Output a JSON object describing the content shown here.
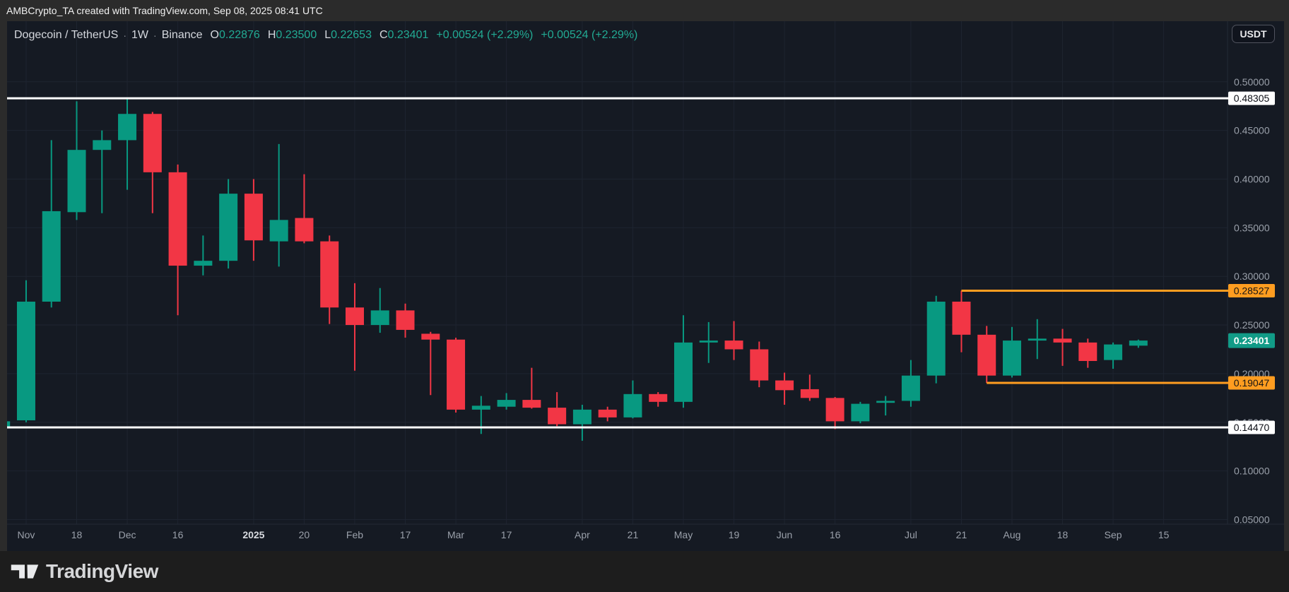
{
  "top_bar": {
    "attribution": "AMBCrypto_TA created with TradingView.com, Sep 08, 2025 08:41 UTC"
  },
  "header": {
    "symbol": "Dogecoin / TetherUS",
    "separator": "·",
    "interval": "1W",
    "exchange": "Binance",
    "ohlc": [
      {
        "label": "O",
        "value": "0.22876"
      },
      {
        "label": "H",
        "value": "0.23500"
      },
      {
        "label": "L",
        "value": "0.22653"
      },
      {
        "label": "C",
        "value": "0.23401"
      }
    ],
    "change_1": "+0.00524 (+2.29%)",
    "change_2": "+0.00524 (+2.29%)"
  },
  "currency_button": {
    "label": "USDT"
  },
  "footer": {
    "brand": "TradingView"
  },
  "colors": {
    "page_background": "#2b2b2b",
    "chart_background": "#151a23",
    "footer_background": "#1d1d1d",
    "grid": "#1e2430",
    "axis_border": "#242a36",
    "axis_text": "#9aa0aa",
    "axis_text_bold": "#d8dbe0",
    "up": "#089981",
    "down": "#f23645",
    "legend_value": "#22ab94",
    "orange": "#ff9d20",
    "white_line": "#ffffff",
    "current_label_bg": "#119b87"
  },
  "chart_data": {
    "type": "candlestick",
    "title": "Dogecoin / TetherUS · 1W · Binance",
    "timeframe": "1W",
    "y_axis": {
      "min": 0.05,
      "max": 0.5,
      "step": 0.05,
      "ticks": [
        {
          "value": 0.5,
          "label": "0.50000"
        },
        {
          "value": 0.45,
          "label": "0.45000"
        },
        {
          "value": 0.4,
          "label": "0.40000"
        },
        {
          "value": 0.35,
          "label": "0.35000"
        },
        {
          "value": 0.3,
          "label": "0.30000"
        },
        {
          "value": 0.25,
          "label": "0.25000"
        },
        {
          "value": 0.2,
          "label": "0.20000"
        },
        {
          "value": 0.15,
          "label": "0.15000"
        },
        {
          "value": 0.1,
          "label": "0.10000"
        },
        {
          "value": 0.05,
          "label": "0.05000"
        }
      ]
    },
    "x_axis": {
      "ticks": [
        {
          "label": "Nov",
          "week": 1,
          "bold": false
        },
        {
          "label": "18",
          "week": 3,
          "bold": false
        },
        {
          "label": "Dec",
          "week": 5,
          "bold": false
        },
        {
          "label": "16",
          "week": 7,
          "bold": false
        },
        {
          "label": "2025",
          "week": 10,
          "bold": true
        },
        {
          "label": "20",
          "week": 12,
          "bold": false
        },
        {
          "label": "Feb",
          "week": 14,
          "bold": false
        },
        {
          "label": "17",
          "week": 16,
          "bold": false
        },
        {
          "label": "Mar",
          "week": 18,
          "bold": false
        },
        {
          "label": "17",
          "week": 20,
          "bold": false
        },
        {
          "label": "Apr",
          "week": 23,
          "bold": false
        },
        {
          "label": "21",
          "week": 25,
          "bold": false
        },
        {
          "label": "May",
          "week": 27,
          "bold": false
        },
        {
          "label": "19",
          "week": 29,
          "bold": false
        },
        {
          "label": "Jun",
          "week": 31,
          "bold": false
        },
        {
          "label": "16",
          "week": 33,
          "bold": false
        },
        {
          "label": "Jul",
          "week": 36,
          "bold": false
        },
        {
          "label": "21",
          "week": 38,
          "bold": false
        },
        {
          "label": "Aug",
          "week": 40,
          "bold": false
        },
        {
          "label": "18",
          "week": 42,
          "bold": false
        },
        {
          "label": "Sep",
          "week": 44,
          "bold": false
        },
        {
          "label": "15",
          "week": 46,
          "bold": false
        }
      ]
    },
    "candles": [
      {
        "date": "2024-10-28",
        "o": 0.144,
        "h": 0.158,
        "l": 0.138,
        "c": 0.151
      },
      {
        "date": "2024-11-04",
        "o": 0.152,
        "h": 0.296,
        "l": 0.15,
        "c": 0.274
      },
      {
        "date": "2024-11-11",
        "o": 0.274,
        "h": 0.44,
        "l": 0.268,
        "c": 0.367
      },
      {
        "date": "2024-11-18",
        "o": 0.366,
        "h": 0.48,
        "l": 0.358,
        "c": 0.43
      },
      {
        "date": "2024-11-25",
        "o": 0.43,
        "h": 0.45,
        "l": 0.365,
        "c": 0.44
      },
      {
        "date": "2024-12-02",
        "o": 0.44,
        "h": 0.48305,
        "l": 0.389,
        "c": 0.467
      },
      {
        "date": "2024-12-09",
        "o": 0.467,
        "h": 0.469,
        "l": 0.365,
        "c": 0.407
      },
      {
        "date": "2024-12-16",
        "o": 0.407,
        "h": 0.415,
        "l": 0.26,
        "c": 0.311
      },
      {
        "date": "2024-12-23",
        "o": 0.311,
        "h": 0.342,
        "l": 0.301,
        "c": 0.316
      },
      {
        "date": "2024-12-30",
        "o": 0.316,
        "h": 0.4,
        "l": 0.308,
        "c": 0.385
      },
      {
        "date": "2025-01-06",
        "o": 0.385,
        "h": 0.4,
        "l": 0.316,
        "c": 0.337
      },
      {
        "date": "2025-01-13",
        "o": 0.336,
        "h": 0.436,
        "l": 0.31,
        "c": 0.358
      },
      {
        "date": "2025-01-20",
        "o": 0.36,
        "h": 0.405,
        "l": 0.334,
        "c": 0.336
      },
      {
        "date": "2025-01-27",
        "o": 0.336,
        "h": 0.342,
        "l": 0.251,
        "c": 0.268
      },
      {
        "date": "2025-02-03",
        "o": 0.268,
        "h": 0.293,
        "l": 0.203,
        "c": 0.25
      },
      {
        "date": "2025-02-10",
        "o": 0.25,
        "h": 0.288,
        "l": 0.242,
        "c": 0.265
      },
      {
        "date": "2025-02-17",
        "o": 0.265,
        "h": 0.272,
        "l": 0.237,
        "c": 0.245
      },
      {
        "date": "2025-02-24",
        "o": 0.241,
        "h": 0.243,
        "l": 0.178,
        "c": 0.235
      },
      {
        "date": "2025-03-03",
        "o": 0.235,
        "h": 0.237,
        "l": 0.16,
        "c": 0.163
      },
      {
        "date": "2025-03-10",
        "o": 0.163,
        "h": 0.177,
        "l": 0.138,
        "c": 0.167
      },
      {
        "date": "2025-03-17",
        "o": 0.166,
        "h": 0.18,
        "l": 0.163,
        "c": 0.173
      },
      {
        "date": "2025-03-24",
        "o": 0.173,
        "h": 0.206,
        "l": 0.164,
        "c": 0.165
      },
      {
        "date": "2025-03-31",
        "o": 0.165,
        "h": 0.181,
        "l": 0.146,
        "c": 0.148
      },
      {
        "date": "2025-04-07",
        "o": 0.148,
        "h": 0.168,
        "l": 0.131,
        "c": 0.163
      },
      {
        "date": "2025-04-14",
        "o": 0.163,
        "h": 0.166,
        "l": 0.151,
        "c": 0.155
      },
      {
        "date": "2025-04-21",
        "o": 0.155,
        "h": 0.193,
        "l": 0.154,
        "c": 0.179
      },
      {
        "date": "2025-04-28",
        "o": 0.179,
        "h": 0.181,
        "l": 0.166,
        "c": 0.171
      },
      {
        "date": "2025-05-05",
        "o": 0.171,
        "h": 0.26,
        "l": 0.165,
        "c": 0.232
      },
      {
        "date": "2025-05-12",
        "o": 0.232,
        "h": 0.253,
        "l": 0.211,
        "c": 0.234
      },
      {
        "date": "2025-05-19",
        "o": 0.234,
        "h": 0.254,
        "l": 0.214,
        "c": 0.225
      },
      {
        "date": "2025-05-26",
        "o": 0.225,
        "h": 0.233,
        "l": 0.186,
        "c": 0.193
      },
      {
        "date": "2025-06-02",
        "o": 0.193,
        "h": 0.201,
        "l": 0.168,
        "c": 0.183
      },
      {
        "date": "2025-06-09",
        "o": 0.184,
        "h": 0.199,
        "l": 0.172,
        "c": 0.175
      },
      {
        "date": "2025-06-16",
        "o": 0.175,
        "h": 0.176,
        "l": 0.143,
        "c": 0.151
      },
      {
        "date": "2025-06-23",
        "o": 0.151,
        "h": 0.171,
        "l": 0.149,
        "c": 0.169
      },
      {
        "date": "2025-06-30",
        "o": 0.17,
        "h": 0.177,
        "l": 0.157,
        "c": 0.172
      },
      {
        "date": "2025-07-07",
        "o": 0.172,
        "h": 0.214,
        "l": 0.166,
        "c": 0.198
      },
      {
        "date": "2025-07-14",
        "o": 0.198,
        "h": 0.28,
        "l": 0.19,
        "c": 0.274
      },
      {
        "date": "2025-07-21",
        "o": 0.274,
        "h": 0.28527,
        "l": 0.222,
        "c": 0.24
      },
      {
        "date": "2025-07-28",
        "o": 0.24,
        "h": 0.249,
        "l": 0.19047,
        "c": 0.198
      },
      {
        "date": "2025-08-04",
        "o": 0.198,
        "h": 0.248,
        "l": 0.196,
        "c": 0.234
      },
      {
        "date": "2025-08-11",
        "o": 0.234,
        "h": 0.256,
        "l": 0.215,
        "c": 0.236
      },
      {
        "date": "2025-08-18",
        "o": 0.236,
        "h": 0.246,
        "l": 0.208,
        "c": 0.232
      },
      {
        "date": "2025-08-25",
        "o": 0.232,
        "h": 0.236,
        "l": 0.206,
        "c": 0.213
      },
      {
        "date": "2025-09-01",
        "o": 0.214,
        "h": 0.232,
        "l": 0.205,
        "c": 0.23
      },
      {
        "date": "2025-09-08",
        "o": 0.22876,
        "h": 0.235,
        "l": 0.22653,
        "c": 0.23401
      }
    ],
    "levels": [
      {
        "label": "0.48305",
        "value": 0.48305,
        "line_color": "#ffffff",
        "label_bg": "#ffffff",
        "label_text": "#0c0e15",
        "from_week": null
      },
      {
        "label": "0.28527",
        "value": 0.28527,
        "line_color": "#ff9d20",
        "label_bg": "#ff9d20",
        "label_text": "#141414",
        "from_week": 38
      },
      {
        "label": "0.19047",
        "value": 0.19047,
        "line_color": "#ff9d20",
        "label_bg": "#ff9d20",
        "label_text": "#141414",
        "from_week": 39
      },
      {
        "label": "0.14470",
        "value": 0.1447,
        "line_color": "#ffffff",
        "label_bg": "#ffffff",
        "label_text": "#0c0e15",
        "from_week": null
      }
    ],
    "current_price": {
      "label": "0.23401",
      "value": 0.23401,
      "bg": "#119b87",
      "text": "#ffffff"
    },
    "legend_position": "top-left",
    "grid": true
  }
}
